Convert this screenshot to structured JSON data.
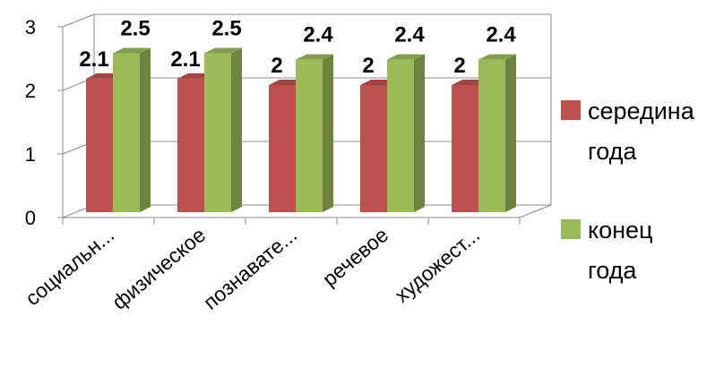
{
  "chart_data": {
    "type": "bar",
    "style": "3d-clustered-column",
    "categories": [
      "социальн...",
      "физическое",
      "познавате...",
      "речевое",
      "художест..."
    ],
    "series": [
      {
        "name": "середина года",
        "values": [
          2.1,
          2.1,
          2,
          2,
          2
        ],
        "labels": [
          "2.1",
          "2.1",
          "2",
          "2",
          "2"
        ],
        "color": "#c0504d"
      },
      {
        "name": "конец года",
        "values": [
          2.5,
          2.5,
          2.4,
          2.4,
          2.4
        ],
        "labels": [
          "2.5",
          "2.5",
          "2.4",
          "2.4",
          "2.4"
        ],
        "color": "#9bbb59"
      }
    ],
    "ylim": [
      0,
      3
    ],
    "yticks": [
      "0",
      "1",
      "2",
      "3"
    ],
    "grid": true,
    "legend_position": "right",
    "legend": [
      {
        "line1": "середина",
        "line2": "года",
        "color": "#c0504d"
      },
      {
        "line1": "конец",
        "line2": "года",
        "color": "#9bbb59"
      }
    ]
  }
}
